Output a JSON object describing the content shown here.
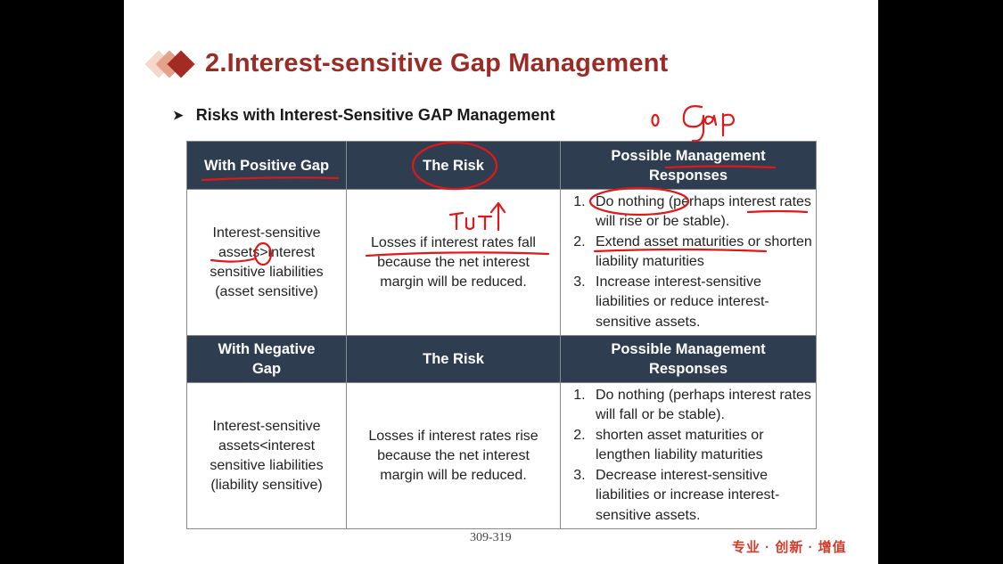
{
  "slide": {
    "title": "2.Interest-sensitive Gap Management",
    "bullet": "Risks with Interest-Sensitive GAP Management",
    "table": {
      "positive": {
        "headers": [
          "With Positive Gap",
          "The Risk",
          "Possible Management Responses"
        ],
        "condition": "Interest-sensitive assets>interest sensitive liabilities (asset sensitive)",
        "risk": "Losses if interest rates fall because the net interest margin will be reduced.",
        "responses": [
          "Do nothing (perhaps interest rates will rise or be stable).",
          "Extend asset  maturities or shorten liability maturities",
          "Increase interest-sensitive liabilities or reduce interest-sensitive assets."
        ]
      },
      "negative": {
        "headers": [
          "With Negative Gap",
          "The Risk",
          "Possible Management Responses"
        ],
        "condition": "Interest-sensitive assets<interest sensitive liabilities (liability sensitive)",
        "risk": "Losses if interest rates rise because the net interest margin will be reduced.",
        "responses": [
          "Do nothing (perhaps interest rates will fall or be stable).",
          "shorten asset  maturities or lengthen liability maturities",
          "Decrease interest-sensitive liabilities or increase interest-sensitive assets."
        ]
      }
    },
    "page_ref": "309-319",
    "footer_tag": "专业 · 创新 · 增值",
    "annotations": {
      "gap_note": "0 Gap",
      "arrow_note": "i↑"
    },
    "colors": {
      "title": "#9b2b24",
      "header_bg": "#2e3d50",
      "ink": "#e01818",
      "footer": "#d23a2a"
    }
  }
}
